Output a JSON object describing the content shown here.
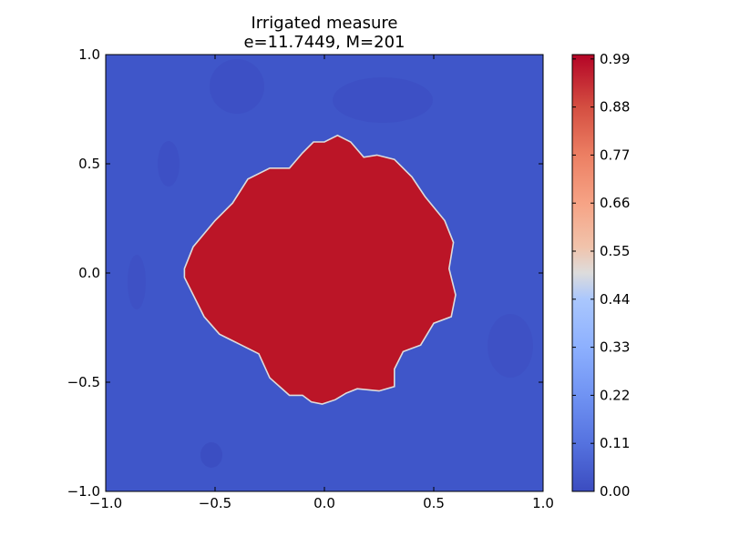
{
  "chart_data": {
    "type": "heatmap",
    "title": "Irrigated measure",
    "subtitle": "e=11.7449, M=201",
    "xlabel": "",
    "ylabel": "",
    "xlim": [
      -1.0,
      1.0
    ],
    "ylim": [
      -1.0,
      1.0
    ],
    "x_ticks": [
      "−1.0",
      "−0.5",
      "0.0",
      "0.5",
      "1.0"
    ],
    "y_ticks": [
      "1.0",
      "0.5",
      "0.0",
      "−0.5",
      "−1.0"
    ],
    "x_tick_values": [
      -1.0,
      -0.5,
      0.0,
      0.5,
      1.0
    ],
    "y_tick_values": [
      1.0,
      0.5,
      0.0,
      -0.5,
      -1.0
    ],
    "grid": false,
    "colormap": "coolwarm",
    "colorbar": {
      "range": [
        0.0,
        1.0
      ],
      "tick_labels": [
        "0.99",
        "0.88",
        "0.77",
        "0.66",
        "0.55",
        "0.44",
        "0.33",
        "0.22",
        "0.11",
        "0.00"
      ],
      "tick_values": [
        0.99,
        0.88,
        0.77,
        0.66,
        0.55,
        0.44,
        0.33,
        0.22,
        0.11,
        0.0
      ]
    },
    "region": {
      "description_value": "irrigated region value near 0.99, background near 0.0",
      "inside_value": 0.99,
      "outside_value": 0.0,
      "boundary": [
        [
          -0.64,
          0.02
        ],
        [
          -0.6,
          0.12
        ],
        [
          -0.5,
          0.24
        ],
        [
          -0.42,
          0.32
        ],
        [
          -0.35,
          0.43
        ],
        [
          -0.25,
          0.48
        ],
        [
          -0.16,
          0.48
        ],
        [
          -0.1,
          0.55
        ],
        [
          -0.05,
          0.6
        ],
        [
          0.0,
          0.6
        ],
        [
          0.06,
          0.63
        ],
        [
          0.12,
          0.6
        ],
        [
          0.18,
          0.53
        ],
        [
          0.24,
          0.54
        ],
        [
          0.32,
          0.52
        ],
        [
          0.4,
          0.44
        ],
        [
          0.46,
          0.35
        ],
        [
          0.55,
          0.24
        ],
        [
          0.59,
          0.14
        ],
        [
          0.57,
          0.02
        ],
        [
          0.6,
          -0.1
        ],
        [
          0.58,
          -0.2
        ],
        [
          0.5,
          -0.23
        ],
        [
          0.44,
          -0.33
        ],
        [
          0.36,
          -0.36
        ],
        [
          0.32,
          -0.44
        ],
        [
          0.32,
          -0.52
        ],
        [
          0.25,
          -0.54
        ],
        [
          0.15,
          -0.53
        ],
        [
          0.1,
          -0.55
        ],
        [
          0.05,
          -0.58
        ],
        [
          -0.01,
          -0.6
        ],
        [
          -0.06,
          -0.59
        ],
        [
          -0.1,
          -0.56
        ],
        [
          -0.16,
          -0.56
        ],
        [
          -0.25,
          -0.48
        ],
        [
          -0.3,
          -0.37
        ],
        [
          -0.38,
          -0.33
        ],
        [
          -0.48,
          -0.28
        ],
        [
          -0.55,
          -0.2
        ],
        [
          -0.6,
          -0.1
        ],
        [
          -0.64,
          -0.02
        ]
      ]
    }
  },
  "colors": {
    "low": "#3f56c9",
    "low_dark": "#3b4cc0",
    "high": "#b40426",
    "high_light": "#bb1527",
    "boundary": "#dddcdc"
  }
}
